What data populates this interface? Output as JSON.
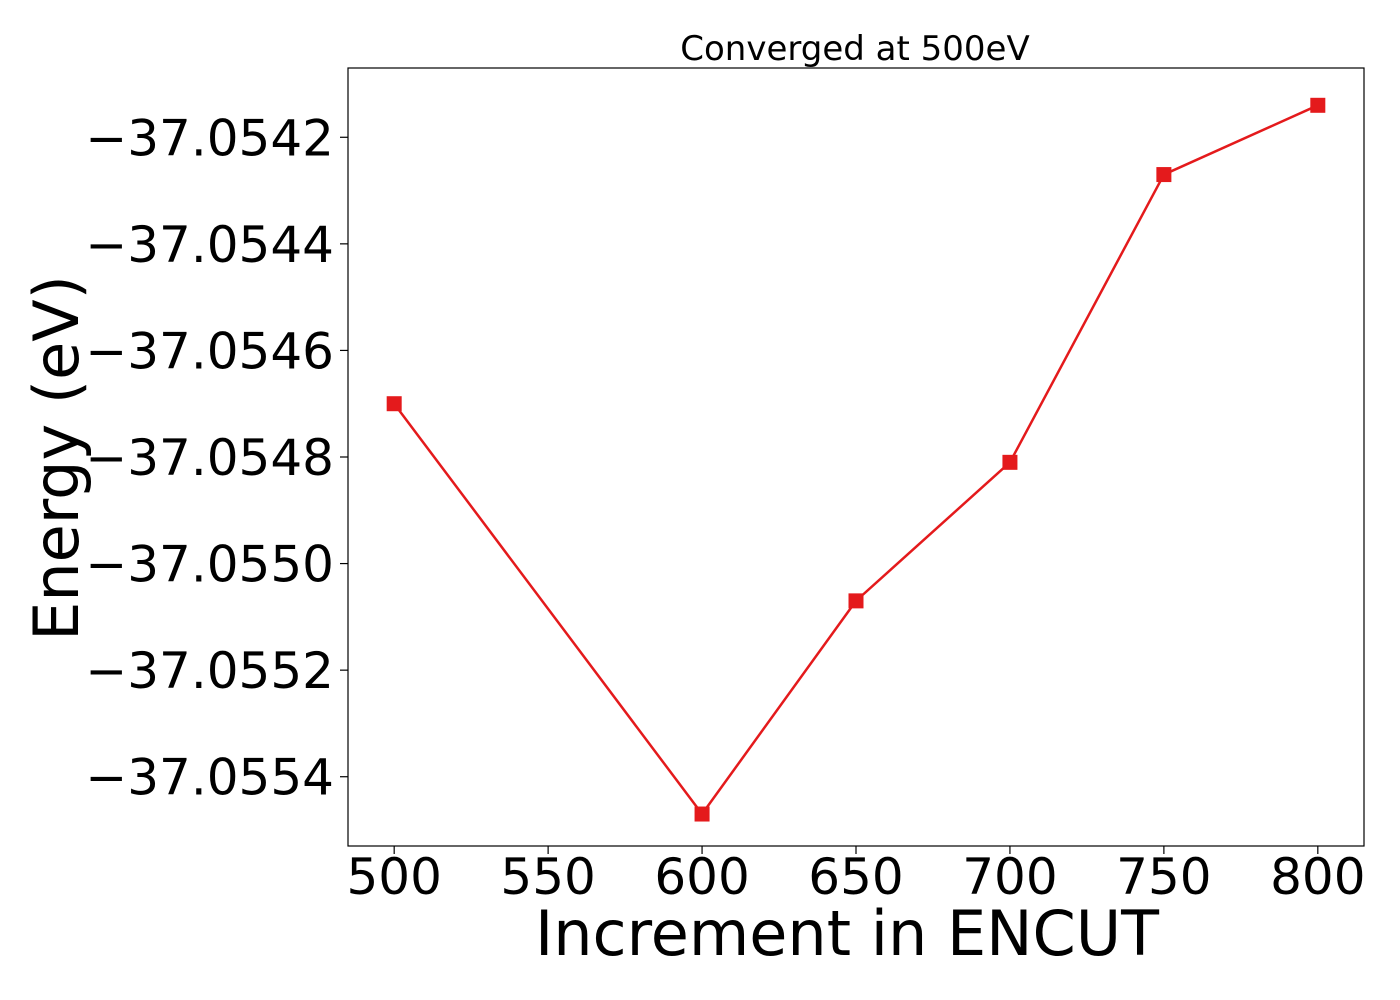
{
  "chart_data": {
    "type": "line",
    "title": "Converged at 500eV",
    "xlabel": "Increment in ENCUT",
    "ylabel": "Energy (eV)",
    "x": [
      500,
      600,
      650,
      700,
      750,
      800
    ],
    "series": [
      {
        "values": [
          -37.0547,
          -37.05547,
          -37.05507,
          -37.05481,
          -37.05427,
          -37.05414
        ],
        "color": "#e41a1c",
        "marker": "square"
      }
    ],
    "xticks": [
      500,
      550,
      600,
      650,
      700,
      750,
      800
    ],
    "xtick_labels": [
      "500",
      "550",
      "600",
      "650",
      "700",
      "750",
      "800"
    ],
    "yticks": [
      -37.0542,
      -37.0544,
      -37.0546,
      -37.0548,
      -37.055,
      -37.0552,
      -37.0554
    ],
    "ytick_labels": [
      "−37.0542",
      "−37.0544",
      "−37.0546",
      "−37.0548",
      "−37.0550",
      "−37.0552",
      "−37.0554"
    ],
    "xlim": [
      485,
      815
    ],
    "ylim": [
      -37.05553,
      -37.05407
    ],
    "grid": false,
    "legend": false
  }
}
